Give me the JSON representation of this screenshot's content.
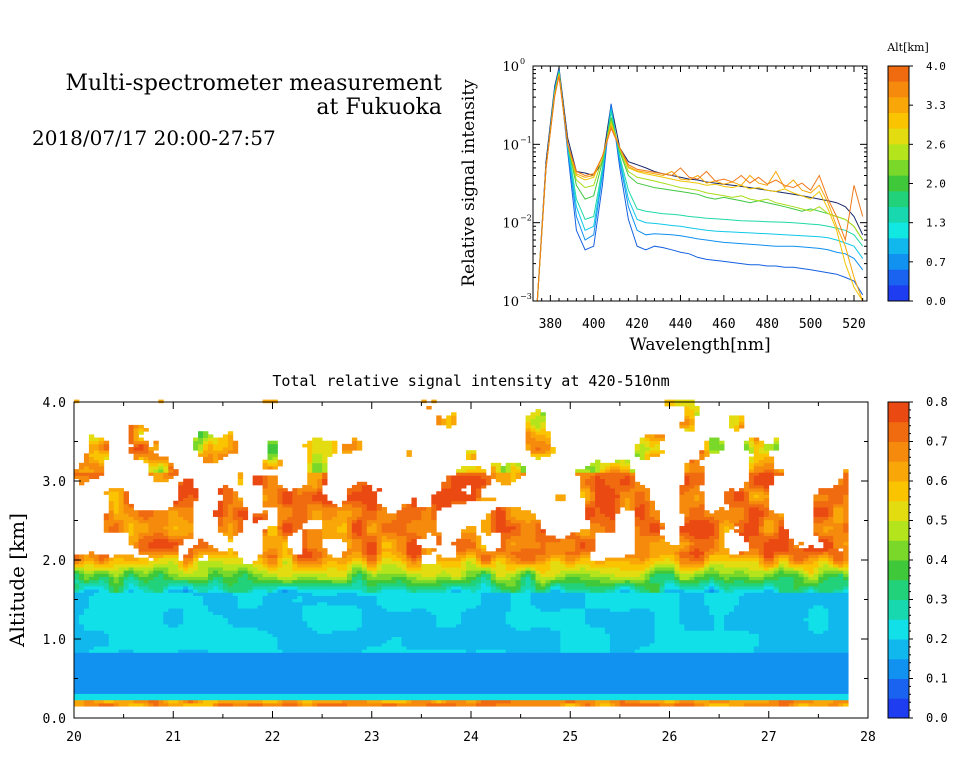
{
  "header": {
    "title_line1": "Multi-spectrometer measurement",
    "title_line2": "at Fukuoka",
    "datetime": "2018/07/17 20:00-27:57"
  },
  "chart_data": [
    {
      "type": "line",
      "id": "spectra",
      "xlabel": "Wavelength[nm]",
      "ylabel": "Relative signal intensity",
      "xlim": [
        372,
        526
      ],
      "ylim": [
        0.001,
        1
      ],
      "yscale": "log",
      "x_ticks": [
        "380",
        "400",
        "420",
        "440",
        "460",
        "480",
        "500",
        "520"
      ],
      "y_ticks": [
        {
          "base": "10",
          "exp": "0"
        },
        {
          "base": "10",
          "exp": "−1"
        },
        {
          "base": "10",
          "exp": "−2"
        },
        {
          "base": "10",
          "exp": "−3"
        }
      ],
      "colorbar": {
        "label": "Alt[km]",
        "tick_labels": [
          "4.0",
          "3.3",
          "2.6",
          "2.0",
          "1.3",
          "0.7",
          "0.0"
        ],
        "colors": [
          "#f06a10",
          "#f58a0c",
          "#f9a608",
          "#fbc400",
          "#e3dc10",
          "#b4e41c",
          "#7ad82a",
          "#3ec83a",
          "#22d27a",
          "#18d8b0",
          "#12e8e2",
          "#10b8ee",
          "#1292f0",
          "#1a62f0",
          "#1e3cf0"
        ]
      },
      "x": [
        374,
        378,
        382,
        384,
        388,
        392,
        396,
        400,
        404,
        408,
        412,
        416,
        420,
        424,
        428,
        432,
        436,
        440,
        444,
        448,
        452,
        456,
        460,
        464,
        468,
        472,
        476,
        480,
        484,
        488,
        492,
        496,
        500,
        504,
        508,
        512,
        516,
        520,
        524
      ],
      "series": [
        {
          "color": "#1a2a6a",
          "values": [
            0.001,
            0.06,
            0.55,
            0.95,
            0.12,
            0.045,
            0.043,
            0.04,
            0.06,
            0.32,
            0.09,
            0.06,
            0.055,
            0.05,
            0.045,
            0.042,
            0.04,
            0.038,
            0.036,
            0.035,
            0.033,
            0.032,
            0.031,
            0.03,
            0.029,
            0.028,
            0.027,
            0.026,
            0.025,
            0.024,
            0.023,
            0.022,
            0.021,
            0.02,
            0.019,
            0.018,
            0.016,
            0.012,
            0.007
          ]
        },
        {
          "color": "#1460e0",
          "values": [
            0.001,
            0.05,
            0.5,
            0.9,
            0.08,
            0.008,
            0.0045,
            0.005,
            0.03,
            0.33,
            0.05,
            0.011,
            0.005,
            0.0045,
            0.005,
            0.0048,
            0.0045,
            0.0042,
            0.004,
            0.0036,
            0.0034,
            0.0033,
            0.0032,
            0.0031,
            0.003,
            0.0029,
            0.0029,
            0.0028,
            0.0028,
            0.0027,
            0.0027,
            0.0026,
            0.0025,
            0.0024,
            0.0023,
            0.0022,
            0.002,
            0.0018,
            0.0012
          ]
        },
        {
          "color": "#1090f0",
          "values": [
            0.001,
            0.05,
            0.5,
            0.88,
            0.09,
            0.012,
            0.006,
            0.007,
            0.04,
            0.3,
            0.06,
            0.016,
            0.008,
            0.007,
            0.0072,
            0.0071,
            0.007,
            0.0068,
            0.0065,
            0.0062,
            0.006,
            0.0058,
            0.0056,
            0.0055,
            0.0054,
            0.0053,
            0.0052,
            0.0051,
            0.005,
            0.005,
            0.005,
            0.0049,
            0.0048,
            0.0047,
            0.0045,
            0.0042,
            0.004,
            0.0035,
            0.0025
          ]
        },
        {
          "color": "#10c8e8",
          "values": [
            0.001,
            0.05,
            0.48,
            0.86,
            0.09,
            0.016,
            0.008,
            0.009,
            0.045,
            0.28,
            0.065,
            0.02,
            0.011,
            0.01,
            0.0098,
            0.0095,
            0.0092,
            0.009,
            0.0086,
            0.0083,
            0.008,
            0.0078,
            0.0077,
            0.0076,
            0.0075,
            0.0074,
            0.0073,
            0.0072,
            0.0071,
            0.007,
            0.0069,
            0.0068,
            0.0067,
            0.0066,
            0.0064,
            0.006,
            0.0055,
            0.005,
            0.0035
          ]
        },
        {
          "color": "#20d8a8",
          "values": [
            0.001,
            0.05,
            0.46,
            0.84,
            0.1,
            0.02,
            0.011,
            0.012,
            0.05,
            0.26,
            0.07,
            0.026,
            0.015,
            0.014,
            0.0135,
            0.013,
            0.0128,
            0.0125,
            0.012,
            0.0117,
            0.0114,
            0.0112,
            0.011,
            0.0108,
            0.0106,
            0.0105,
            0.0104,
            0.0103,
            0.0102,
            0.0101,
            0.01,
            0.0098,
            0.0096,
            0.0094,
            0.009,
            0.0085,
            0.008,
            0.007,
            0.005
          ]
        },
        {
          "color": "#40c840",
          "values": [
            0.001,
            0.05,
            0.45,
            0.82,
            0.1,
            0.03,
            0.02,
            0.022,
            0.06,
            0.22,
            0.08,
            0.04,
            0.032,
            0.03,
            0.028,
            0.027,
            0.026,
            0.025,
            0.024,
            0.023,
            0.021,
            0.02,
            0.021,
            0.02,
            0.019,
            0.018,
            0.019,
            0.018,
            0.017,
            0.016,
            0.015,
            0.014,
            0.015,
            0.014,
            0.013,
            0.012,
            0.011,
            0.009,
            0.006
          ]
        },
        {
          "color": "#a8dc18",
          "values": [
            0.001,
            0.05,
            0.44,
            0.8,
            0.1,
            0.035,
            0.028,
            0.03,
            0.065,
            0.2,
            0.085,
            0.045,
            0.038,
            0.036,
            0.034,
            0.032,
            0.03,
            0.028,
            0.027,
            0.026,
            0.024,
            0.023,
            0.022,
            0.021,
            0.022,
            0.02,
            0.019,
            0.02,
            0.018,
            0.017,
            0.016,
            0.015,
            0.014,
            0.016,
            0.013,
            0.012,
            0.011,
            0.009,
            0.006
          ]
        },
        {
          "color": "#f0c400",
          "values": [
            0.001,
            0.05,
            0.43,
            0.78,
            0.1,
            0.04,
            0.035,
            0.038,
            0.07,
            0.18,
            0.09,
            0.05,
            0.045,
            0.042,
            0.04,
            0.038,
            0.036,
            0.034,
            0.033,
            0.032,
            0.03,
            0.031,
            0.029,
            0.028,
            0.03,
            0.027,
            0.028,
            0.026,
            0.025,
            0.027,
            0.024,
            0.022,
            0.02,
            0.025,
            0.015,
            0.008,
            0.003,
            0.0015,
            0.001
          ]
        },
        {
          "color": "#f8a808",
          "values": [
            0.001,
            0.05,
            0.42,
            0.76,
            0.1,
            0.042,
            0.038,
            0.04,
            0.07,
            0.17,
            0.09,
            0.052,
            0.046,
            0.044,
            0.042,
            0.04,
            0.045,
            0.036,
            0.035,
            0.04,
            0.032,
            0.034,
            0.031,
            0.033,
            0.03,
            0.04,
            0.032,
            0.03,
            0.045,
            0.028,
            0.035,
            0.026,
            0.024,
            0.03,
            0.018,
            0.009,
            0.005,
            0.002,
            0.001
          ]
        },
        {
          "color": "#f07818",
          "values": [
            0.001,
            0.05,
            0.41,
            0.74,
            0.1,
            0.045,
            0.04,
            0.042,
            0.07,
            0.16,
            0.09,
            0.055,
            0.048,
            0.046,
            0.044,
            0.042,
            0.04,
            0.05,
            0.038,
            0.036,
            0.045,
            0.034,
            0.036,
            0.033,
            0.04,
            0.032,
            0.038,
            0.031,
            0.035,
            0.03,
            0.028,
            0.032,
            0.026,
            0.04,
            0.02,
            0.012,
            0.006,
            0.03,
            0.012
          ]
        }
      ]
    },
    {
      "type": "heatmap",
      "id": "total_intensity",
      "title": "Total relative signal intensity at 420-510nm",
      "xlabel": "",
      "ylabel": "Altitude [km]",
      "xlim": [
        20,
        28
      ],
      "ylim": [
        0.0,
        4.0
      ],
      "data_xrange": [
        20,
        27.8
      ],
      "data_yrange": [
        0.15,
        4.0
      ],
      "x_ticks": [
        "20",
        "21",
        "22",
        "23",
        "24",
        "25",
        "26",
        "27",
        "28"
      ],
      "y_ticks": [
        "0.0",
        "1.0",
        "2.0",
        "3.0",
        "4.0"
      ],
      "colorbar": {
        "tick_labels": [
          "0.8",
          "0.7",
          "0.6",
          "0.5",
          "0.4",
          "0.3",
          "0.2",
          "0.1",
          "0.0"
        ],
        "vmin": 0.0,
        "vmax": 0.8,
        "colors": [
          "#1e3cf0",
          "#1a62f0",
          "#1292f0",
          "#10b8ee",
          "#12e0e8",
          "#18d8b0",
          "#22d27a",
          "#3ec83a",
          "#7ad82a",
          "#b4e41c",
          "#e3dc10",
          "#fbc400",
          "#f9a608",
          "#f58a0c",
          "#f06a10",
          "#ea4a12"
        ]
      }
    }
  ]
}
